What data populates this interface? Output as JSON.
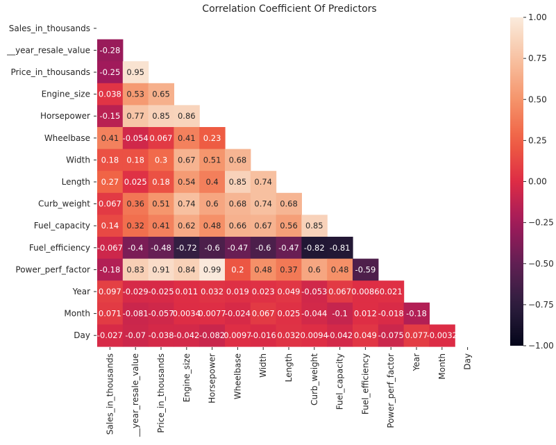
{
  "chart_data": {
    "type": "heatmap",
    "title": "Correlation Coefficient Of Predictors",
    "variables": [
      "Sales_in_thousands",
      "__year_resale_value",
      "Price_in_thousands",
      "Engine_size",
      "Horsepower",
      "Wheelbase",
      "Width",
      "Length",
      "Curb_weight",
      "Fuel_capacity",
      "Fuel_efficiency",
      "Power_perf_factor",
      "Year",
      "Month",
      "Day"
    ],
    "mask": "upper-triangle-including-diagonal",
    "rows": [
      {
        "name": "Sales_in_thousands",
        "values": []
      },
      {
        "name": "__year_resale_value",
        "values": [
          -0.28
        ]
      },
      {
        "name": "Price_in_thousands",
        "values": [
          -0.25,
          0.95
        ]
      },
      {
        "name": "Engine_size",
        "values": [
          0.038,
          0.53,
          0.65
        ]
      },
      {
        "name": "Horsepower",
        "values": [
          -0.15,
          0.77,
          0.85,
          0.86
        ]
      },
      {
        "name": "Wheelbase",
        "values": [
          0.41,
          -0.054,
          0.067,
          0.41,
          0.23
        ]
      },
      {
        "name": "Width",
        "values": [
          0.18,
          0.18,
          0.3,
          0.67,
          0.51,
          0.68
        ]
      },
      {
        "name": "Length",
        "values": [
          0.27,
          0.025,
          0.18,
          0.54,
          0.4,
          0.85,
          0.74
        ]
      },
      {
        "name": "Curb_weight",
        "values": [
          0.067,
          0.36,
          0.51,
          0.74,
          0.6,
          0.68,
          0.74,
          0.68
        ]
      },
      {
        "name": "Fuel_capacity",
        "values": [
          0.14,
          0.32,
          0.41,
          0.62,
          0.48,
          0.66,
          0.67,
          0.56,
          0.85
        ]
      },
      {
        "name": "Fuel_efficiency",
        "values": [
          -0.067,
          -0.4,
          -0.48,
          -0.72,
          -0.6,
          -0.47,
          -0.6,
          -0.47,
          -0.82,
          -0.81
        ]
      },
      {
        "name": "Power_perf_factor",
        "values": [
          -0.18,
          0.83,
          0.91,
          0.84,
          0.99,
          0.2,
          0.48,
          0.37,
          0.6,
          0.48,
          -0.59
        ]
      },
      {
        "name": "Year",
        "values": [
          0.097,
          -0.029,
          -0.025,
          0.011,
          0.032,
          0.019,
          0.023,
          0.049,
          -0.053,
          0.067,
          0.0086,
          0.021
        ]
      },
      {
        "name": "Month",
        "values": [
          0.071,
          -0.081,
          -0.057,
          0.0034,
          0.0077,
          -0.024,
          0.067,
          0.025,
          -0.044,
          -0.1,
          0.012,
          -0.018,
          -0.18
        ]
      },
      {
        "name": "Day",
        "values": [
          -0.027,
          -0.07,
          -0.038,
          -0.042,
          -0.082,
          0.0097,
          -0.016,
          0.032,
          0.0094,
          -0.042,
          0.049,
          -0.075,
          0.077,
          -0.0032
        ]
      }
    ],
    "cell_labels": [
      [],
      [
        "-0.28"
      ],
      [
        "-0.25",
        "0.95"
      ],
      [
        "0.038",
        "0.53",
        "0.65"
      ],
      [
        "-0.15",
        "0.77",
        "0.85",
        "0.86"
      ],
      [
        "0.41",
        "-0.054",
        "0.067",
        "0.41",
        "0.23"
      ],
      [
        "0.18",
        "0.18",
        "0.3",
        "0.67",
        "0.51",
        "0.68"
      ],
      [
        "0.27",
        "0.025",
        "0.18",
        "0.54",
        "0.4",
        "0.85",
        "0.74"
      ],
      [
        "0.067",
        "0.36",
        "0.51",
        "0.74",
        "0.6",
        "0.68",
        "0.74",
        "0.68"
      ],
      [
        "0.14",
        "0.32",
        "0.41",
        "0.62",
        "0.48",
        "0.66",
        "0.67",
        "0.56",
        "0.85"
      ],
      [
        "-0.067",
        "-0.4",
        "-0.48",
        "-0.72",
        "-0.6",
        "-0.47",
        "-0.6",
        "-0.47",
        "-0.82",
        "-0.81"
      ],
      [
        "-0.18",
        "0.83",
        "0.91",
        "0.84",
        "0.99",
        "0.2",
        "0.48",
        "0.37",
        "0.6",
        "0.48",
        "-0.59"
      ],
      [
        "0.097",
        "-0.029",
        "-0.025",
        "0.011",
        "0.032",
        "0.019",
        "0.023",
        "0.049",
        "-0.053",
        "0.067",
        "0.0086",
        "0.021"
      ],
      [
        "0.071",
        "-0.081",
        "-0.057",
        "0.0034",
        "0.0077",
        "-0.024",
        "0.067",
        "0.025",
        "-0.044",
        "-0.1",
        "0.012",
        "-0.018",
        "-0.18"
      ],
      [
        "-0.027",
        "-0.07",
        "-0.038",
        "-0.042",
        "-0.082",
        "0.0097",
        "-0.016",
        "0.032",
        "0.0094",
        "-0.042",
        "0.049",
        "-0.075",
        "0.077",
        "-0.0032"
      ]
    ],
    "colorbar": {
      "vmin": -1.0,
      "vmax": 1.0,
      "ticks": [
        1.0,
        0.75,
        0.5,
        0.25,
        0.0,
        -0.25,
        -0.5,
        -0.75,
        -1.0
      ],
      "tick_labels": [
        "1.00",
        "0.75",
        "0.50",
        "0.25",
        "0.00",
        "−0.25",
        "−0.50",
        "−0.75",
        "−1.00"
      ]
    },
    "colormap": {
      "name": "rocket",
      "stops": [
        {
          "value": -1.0,
          "color": "#03051a"
        },
        {
          "value": -0.75,
          "color": "#2d1e3e"
        },
        {
          "value": -0.5,
          "color": "#611f53"
        },
        {
          "value": -0.25,
          "color": "#a11a5b"
        },
        {
          "value": 0.0,
          "color": "#dd2c45"
        },
        {
          "value": 0.25,
          "color": "#f06043"
        },
        {
          "value": 0.5,
          "color": "#f5946b"
        },
        {
          "value": 0.75,
          "color": "#f7c2a2"
        },
        {
          "value": 1.0,
          "color": "#faebdd"
        }
      ]
    },
    "text_colors": {
      "light": "#ffffff",
      "dark": "#262626"
    },
    "axis_color": "#262626",
    "grid": false
  }
}
